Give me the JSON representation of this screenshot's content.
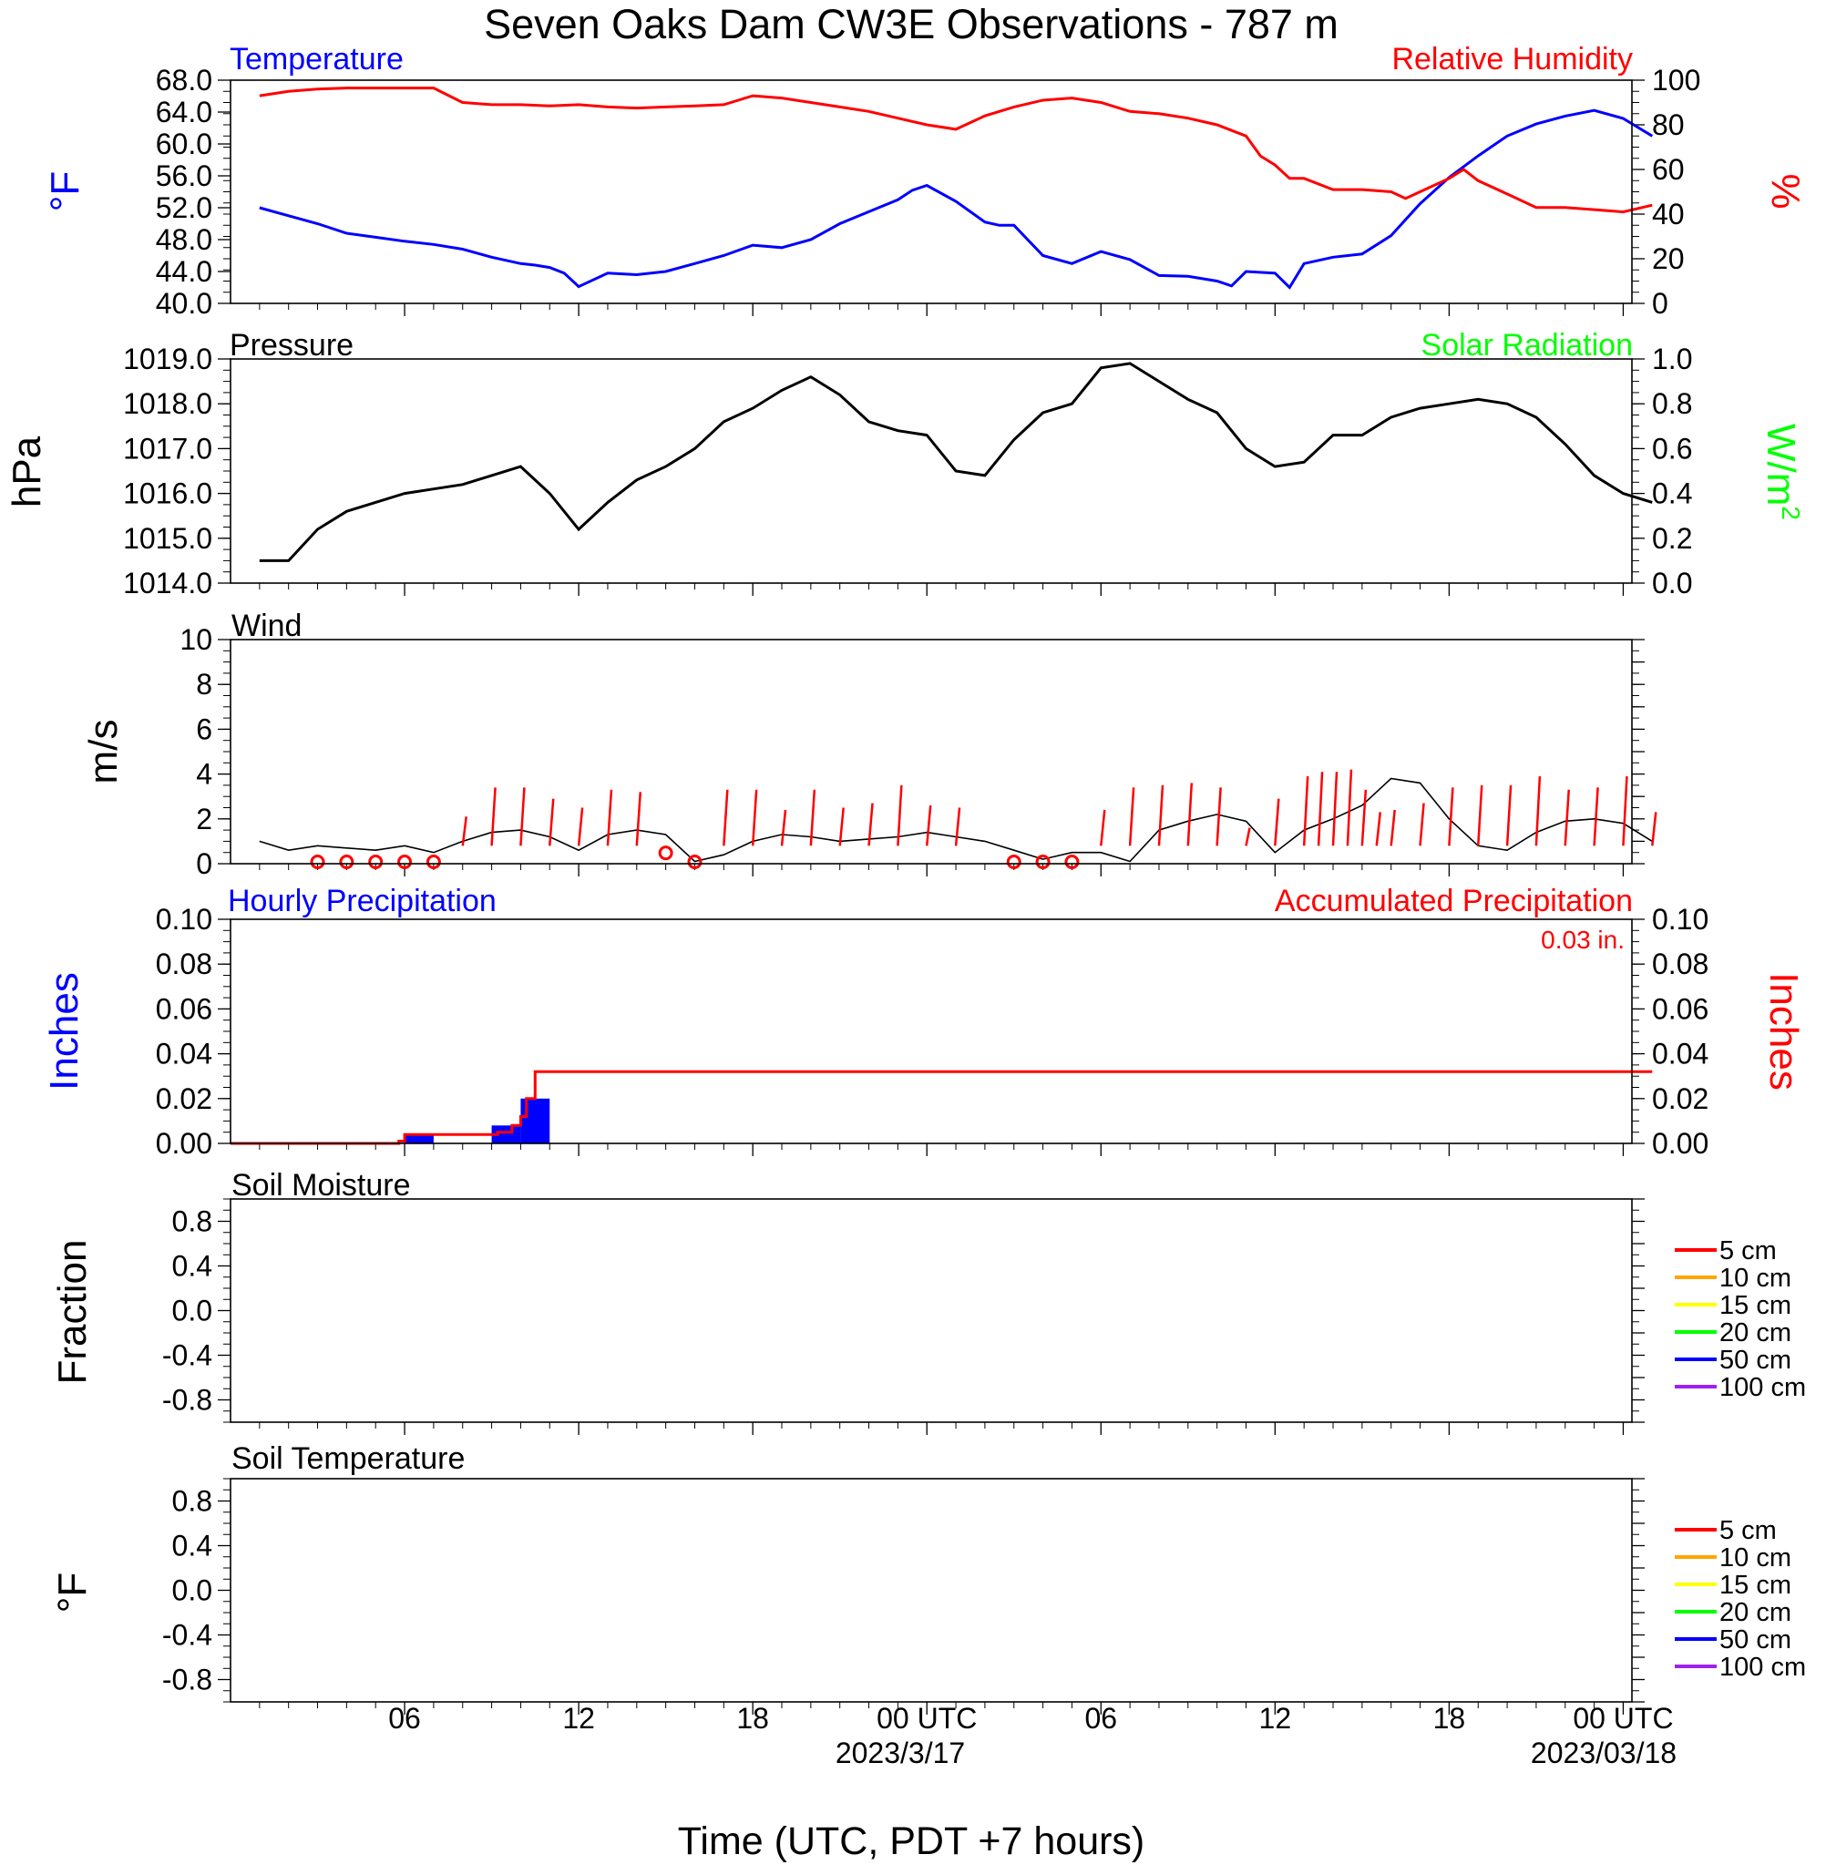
{
  "figure": {
    "title": "Seven Oaks Dam CW3E Observations - 787 m",
    "xlabel": "Time (UTC, PDT +7 hours)",
    "x_ticks": [
      "06",
      "12",
      "18",
      "00 UTC",
      "06",
      "12",
      "18",
      "00 UTC"
    ],
    "x_dates": [
      "2023/3/17",
      "2023/03/18"
    ]
  },
  "colors": {
    "temperature": "#0000ff",
    "humidity": "#ff0000",
    "pressure": "#000000",
    "solar": "#00ff00",
    "wind": "#000000",
    "gust": "#ff0000",
    "hourly_precip": "#0000ff",
    "accum_precip": "#ff0000"
  },
  "chart_data": [
    {
      "id": "temp_rh",
      "type": "line",
      "title_left": "Temperature",
      "title_right": "Relative Humidity",
      "ylabel_left": "°F",
      "ylabel_right": "%",
      "ylim_left": [
        40,
        68
      ],
      "ylim_right": [
        0,
        100
      ],
      "yticks_left": [
        "40.0",
        "44.0",
        "48.0",
        "52.0",
        "56.0",
        "60.0",
        "64.0",
        "68.0"
      ],
      "yticks_right": [
        "0",
        "20",
        "40",
        "60",
        "80",
        "100"
      ],
      "series": [
        {
          "name": "Temperature",
          "axis": "left",
          "x": [
            1,
            2,
            3,
            4,
            5,
            6,
            7,
            8,
            9,
            10,
            10.5,
            11,
            11.5,
            12,
            13,
            14,
            15,
            16,
            17,
            18,
            19,
            20,
            21,
            22,
            23,
            23.5,
            24,
            25,
            26,
            26.5,
            27,
            28,
            29,
            30,
            31,
            32,
            33,
            34,
            34.5,
            35,
            36,
            36.5,
            37,
            38,
            39,
            40,
            41,
            42,
            43,
            44,
            45,
            46,
            47,
            48,
            49
          ],
          "y": [
            52,
            51,
            50,
            48.8,
            48.3,
            47.8,
            47.4,
            46.8,
            45.8,
            45.0,
            44.8,
            44.5,
            43.8,
            42.1,
            43.8,
            43.6,
            44.0,
            45.0,
            46.0,
            47.3,
            47.0,
            48.0,
            50.0,
            51.5,
            53.0,
            54.2,
            54.8,
            52.8,
            50.2,
            49.8,
            49.8,
            46.0,
            45.0,
            46.5,
            45.5,
            43.5,
            43.4,
            42.8,
            42.2,
            44.0,
            43.8,
            42.0,
            45.0,
            45.8,
            46.2,
            48.5,
            52.5,
            55.8,
            58.5,
            61.0,
            62.5,
            63.5,
            64.2,
            63.2,
            61.0
          ]
        },
        {
          "name": "Relative Humidity",
          "axis": "right",
          "x": [
            1,
            2,
            3,
            4,
            5,
            6,
            7,
            8,
            9,
            10,
            11,
            12,
            13,
            14,
            15,
            16,
            17,
            18,
            19,
            20,
            21,
            22,
            23,
            24,
            25,
            26,
            27,
            28,
            29,
            30,
            31,
            32,
            33,
            34,
            35,
            35.5,
            36,
            36.5,
            37,
            38,
            39,
            40,
            40.5,
            41,
            42,
            42.5,
            43,
            44,
            45,
            46,
            47,
            48,
            49
          ],
          "y": [
            93,
            95,
            96,
            96.5,
            96.5,
            96.5,
            96.5,
            90,
            89,
            89,
            88.5,
            89,
            88,
            87.5,
            88,
            88.5,
            89,
            93,
            92,
            90,
            88,
            86,
            83,
            80,
            78,
            84,
            88,
            91,
            92,
            90,
            86,
            85,
            83,
            80,
            75,
            66,
            62,
            56,
            56,
            51,
            51,
            50,
            47,
            50,
            56,
            60,
            55,
            49,
            43,
            43,
            42,
            41,
            44
          ]
        }
      ]
    },
    {
      "id": "pressure_solar",
      "type": "line",
      "title_left": "Pressure",
      "title_right": "Solar Radiation",
      "ylabel_left": "hPa",
      "ylabel_right": "W/m2",
      "ylim_left": [
        1014,
        1019
      ],
      "ylim_right": [
        0,
        1.0
      ],
      "yticks_left": [
        "1014.0",
        "1015.0",
        "1016.0",
        "1017.0",
        "1018.0",
        "1019.0"
      ],
      "yticks_right": [
        "0.0",
        "0.2",
        "0.4",
        "0.6",
        "0.8",
        "1.0"
      ],
      "series": [
        {
          "name": "Pressure",
          "axis": "left",
          "x": [
            1,
            2,
            3,
            4,
            5,
            6,
            7,
            8,
            9,
            10,
            11,
            12,
            13,
            14,
            15,
            16,
            17,
            18,
            19,
            20,
            21,
            22,
            23,
            24,
            25,
            26,
            27,
            28,
            29,
            30,
            31,
            32,
            33,
            34,
            35,
            36,
            37,
            38,
            39,
            40,
            41,
            42,
            43,
            44,
            45,
            46,
            47,
            48,
            49
          ],
          "y": [
            1014.5,
            1014.5,
            1015.2,
            1015.6,
            1015.8,
            1016.0,
            1016.1,
            1016.2,
            1016.4,
            1016.6,
            1016.0,
            1015.2,
            1015.8,
            1016.3,
            1016.6,
            1017.0,
            1017.6,
            1017.9,
            1018.3,
            1018.6,
            1018.2,
            1017.6,
            1017.4,
            1017.3,
            1016.5,
            1016.4,
            1017.2,
            1017.8,
            1018.0,
            1018.8,
            1018.9,
            1018.5,
            1018.1,
            1017.8,
            1017.0,
            1016.6,
            1016.7,
            1017.3,
            1017.3,
            1017.7,
            1017.9,
            1018.0,
            1018.1,
            1018.0,
            1017.7,
            1017.1,
            1016.4,
            1016.0,
            1015.8
          ]
        }
      ]
    },
    {
      "id": "wind",
      "type": "line",
      "title_left": "Wind",
      "ylabel_left": "m/s",
      "ylim_left": [
        0,
        10
      ],
      "yticks_left": [
        "0",
        "2",
        "4",
        "6",
        "8",
        "10"
      ],
      "series": [
        {
          "name": "Wind speed",
          "axis": "left",
          "x": [
            1,
            2,
            3,
            4,
            5,
            6,
            7,
            8,
            9,
            10,
            11,
            12,
            13,
            14,
            15,
            16,
            17,
            18,
            19,
            20,
            21,
            22,
            23,
            24,
            25,
            26,
            27,
            28,
            29,
            30,
            31,
            32,
            33,
            34,
            35,
            36,
            37,
            38,
            39,
            40,
            41,
            42,
            43,
            44,
            45,
            46,
            47,
            48,
            49
          ],
          "y": [
            1.0,
            0.6,
            0.8,
            0.7,
            0.6,
            0.8,
            0.5,
            1.0,
            1.4,
            1.5,
            1.2,
            0.6,
            1.3,
            1.5,
            1.3,
            0.1,
            0.4,
            1.0,
            1.3,
            1.2,
            1.0,
            1.1,
            1.2,
            1.4,
            1.2,
            1.0,
            0.6,
            0.2,
            0.5,
            0.5,
            0.1,
            1.5,
            1.9,
            2.2,
            1.9,
            0.5,
            1.5,
            2.0,
            2.6,
            3.8,
            3.6,
            2.0,
            0.8,
            0.6,
            1.4,
            1.9,
            2.0,
            1.8,
            1.0
          ]
        },
        {
          "name": "Gust",
          "axis": "left",
          "x": [
            8,
            9,
            10,
            11,
            12,
            13,
            14,
            17,
            18,
            19,
            20,
            21,
            22,
            23,
            24,
            25,
            30,
            31,
            32,
            33,
            34,
            35,
            36,
            37,
            37.5,
            38,
            38.5,
            39,
            39.5,
            40,
            41,
            42,
            43,
            44,
            45,
            46,
            47,
            48,
            49
          ],
          "y": [
            2.1,
            3.4,
            3.4,
            2.9,
            2.5,
            3.3,
            3.2,
            3.3,
            3.3,
            2.4,
            3.3,
            2.5,
            2.7,
            3.5,
            2.6,
            2.5,
            2.4,
            3.4,
            3.5,
            3.6,
            3.4,
            1.6,
            2.9,
            3.9,
            4.1,
            4.1,
            4.2,
            3.3,
            2.3,
            2.4,
            2.7,
            3.4,
            3.5,
            3.5,
            3.9,
            3.3,
            3.4,
            3.9,
            2.3
          ]
        },
        {
          "name": "Calm markers",
          "axis": "left",
          "x": [
            3,
            4,
            5,
            6,
            7,
            15,
            16,
            27,
            28,
            29
          ],
          "y": [
            0,
            0,
            0,
            0,
            0,
            0.4,
            0,
            0,
            0,
            0
          ]
        }
      ]
    },
    {
      "id": "precip",
      "type": "bar",
      "title_left": "Hourly Precipitation",
      "title_right": "Accumulated Precipitation",
      "annotation": "0.03 in.",
      "ylabel_left": "Inches",
      "ylabel_right": "Inches",
      "ylim_left": [
        0,
        0.1
      ],
      "ylim_right": [
        0,
        0.1
      ],
      "yticks_left": [
        "0.00",
        "0.02",
        "0.04",
        "0.06",
        "0.08",
        "0.10"
      ],
      "yticks_right": [
        "0.00",
        "0.02",
        "0.04",
        "0.06",
        "0.08",
        "0.10"
      ],
      "series": [
        {
          "name": "Hourly Precipitation",
          "axis": "left",
          "x": [
            6.5,
            9.5,
            10.5
          ],
          "values": [
            0.004,
            0.008,
            0.02
          ]
        },
        {
          "name": "Accumulated Precipitation",
          "axis": "right",
          "x": [
            0,
            5.8,
            5.8,
            6.0,
            6.0,
            9.2,
            9.2,
            9.7,
            9.7,
            10.0,
            10.0,
            10.2,
            10.2,
            10.5,
            10.5,
            49
          ],
          "y": [
            0,
            0,
            0.001,
            0.001,
            0.004,
            0.004,
            0.005,
            0.005,
            0.008,
            0.008,
            0.012,
            0.012,
            0.02,
            0.02,
            0.032,
            0.032
          ]
        }
      ]
    },
    {
      "id": "soil_moisture",
      "type": "line",
      "title_left": "Soil Moisture",
      "ylabel_left": "Fraction",
      "ylim_left": [
        -1,
        1
      ],
      "yticks_left": [
        "-0.8",
        "-0.4",
        "0.0",
        "0.4",
        "0.8"
      ],
      "legend": [
        "5 cm",
        "10 cm",
        "15 cm",
        "20 cm",
        "50 cm",
        "100 cm"
      ],
      "series": []
    },
    {
      "id": "soil_temperature",
      "type": "line",
      "title_left": "Soil Temperature",
      "ylabel_left": "°F",
      "ylim_left": [
        -1,
        1
      ],
      "yticks_left": [
        "-0.8",
        "-0.4",
        "0.0",
        "0.4",
        "0.8"
      ],
      "legend": [
        "5 cm",
        "10 cm",
        "15 cm",
        "20 cm",
        "50 cm",
        "100 cm"
      ],
      "series": []
    }
  ],
  "legend_colors": [
    "#ff0000",
    "#ffa500",
    "#ffff00",
    "#00ff00",
    "#0000ff",
    "#a020f0"
  ]
}
